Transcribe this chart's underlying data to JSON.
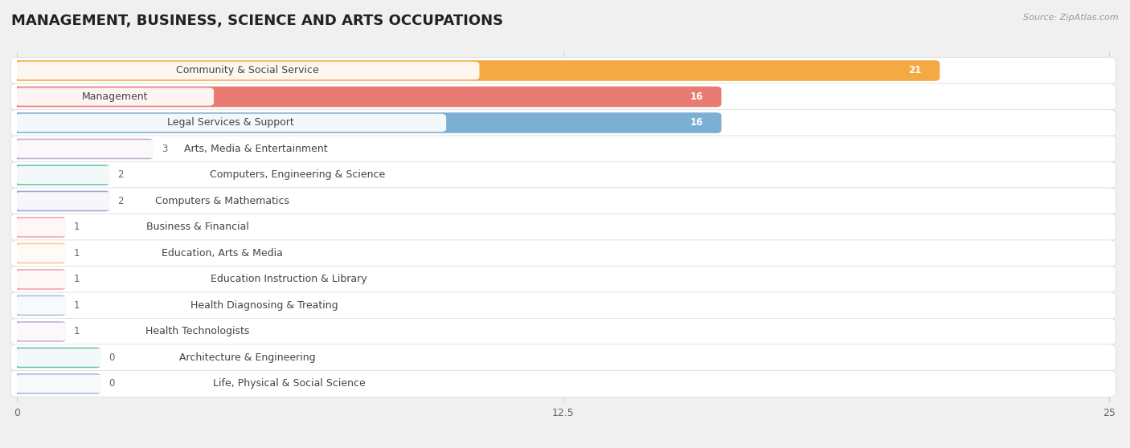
{
  "title": "MANAGEMENT, BUSINESS, SCIENCE AND ARTS OCCUPATIONS",
  "source": "Source: ZipAtlas.com",
  "categories": [
    "Community & Social Service",
    "Management",
    "Legal Services & Support",
    "Arts, Media & Entertainment",
    "Computers, Engineering & Science",
    "Computers & Mathematics",
    "Business & Financial",
    "Education, Arts & Media",
    "Education Instruction & Library",
    "Health Diagnosing & Treating",
    "Health Technologists",
    "Architecture & Engineering",
    "Life, Physical & Social Science"
  ],
  "values": [
    21,
    16,
    16,
    3,
    2,
    2,
    1,
    1,
    1,
    1,
    1,
    0,
    0
  ],
  "bar_colors": [
    "#F5A943",
    "#E87B72",
    "#7BAFD4",
    "#C4AECE",
    "#6BBFB5",
    "#9EA8D8",
    "#F5A0B5",
    "#F9C990",
    "#F5A0A8",
    "#A8C4DC",
    "#C4B0D0",
    "#6BBFB5",
    "#B0B8DC"
  ],
  "label_pill_color": "#ffffff",
  "label_text_color": "#444444",
  "row_bg_color": "#ffffff",
  "row_border_color": "#dddddd",
  "background_color": "#f0f0f0",
  "value_color_inside": "#ffffff",
  "value_color_outside": "#666666",
  "xlim_max": 25,
  "xticks": [
    0,
    12.5,
    25
  ],
  "title_fontsize": 13,
  "label_fontsize": 9,
  "value_fontsize": 8.5
}
